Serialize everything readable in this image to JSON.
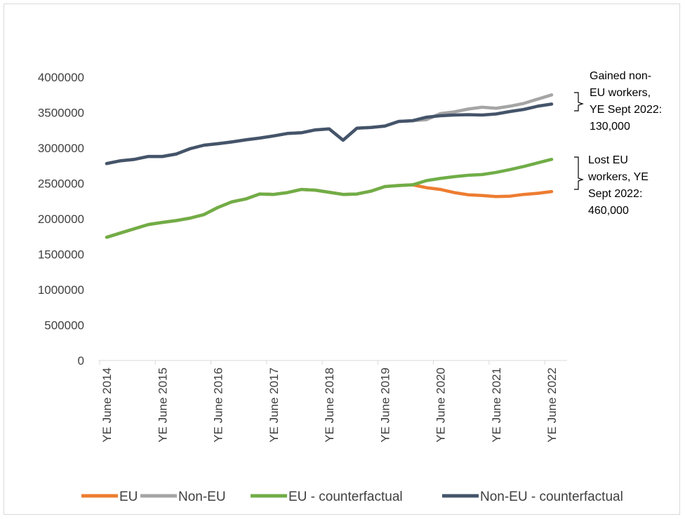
{
  "chart_data": {
    "type": "line",
    "title": "",
    "xlabel": "",
    "ylabel": "",
    "ylim": [
      0,
      4000000
    ],
    "yticks": [
      0,
      500000,
      1000000,
      1500000,
      2000000,
      2500000,
      3000000,
      3500000,
      4000000
    ],
    "ytick_labels": [
      "0",
      "500000",
      "1000000",
      "1500000",
      "2000000",
      "2500000",
      "3000000",
      "3500000",
      "4000000"
    ],
    "x_tick_labels": [
      "YE June 2014",
      "YE June 2015",
      "YE June 2016",
      "YE June 2017",
      "YE June 2018",
      "YE June 2019",
      "YE June 2020",
      "YE June 2021",
      "YE June 2022"
    ],
    "x_tick_positions": [
      0,
      4,
      8,
      12,
      16,
      20,
      24,
      28,
      32
    ],
    "grid": false,
    "legend_position": "bottom",
    "series": [
      {
        "name": "EU",
        "color": "#ED7D31",
        "values": [
          1740000,
          1800000,
          1860000,
          1920000,
          1950000,
          1975000,
          2010000,
          2060000,
          2160000,
          2240000,
          2280000,
          2350000,
          2345000,
          2370000,
          2415000,
          2405000,
          2375000,
          2345000,
          2350000,
          2390000,
          2455000,
          2470000,
          2480000,
          2440000,
          2415000,
          2370000,
          2340000,
          2330000,
          2315000,
          2320000,
          2345000,
          2360000,
          2385000
        ]
      },
      {
        "name": "Non-EU",
        "color": "#A5A5A5",
        "values": [
          2780000,
          2820000,
          2840000,
          2880000,
          2880000,
          2915000,
          2990000,
          3040000,
          3060000,
          3085000,
          3115000,
          3140000,
          3170000,
          3205000,
          3215000,
          3255000,
          3270000,
          3110000,
          3280000,
          3290000,
          3310000,
          3375000,
          3385000,
          3400000,
          3485000,
          3510000,
          3550000,
          3575000,
          3560000,
          3590000,
          3630000,
          3690000,
          3750000
        ]
      },
      {
        "name": "EU - counterfactual",
        "color": "#70AD47",
        "values": [
          1740000,
          1800000,
          1860000,
          1920000,
          1950000,
          1975000,
          2010000,
          2060000,
          2160000,
          2240000,
          2280000,
          2350000,
          2345000,
          2370000,
          2415000,
          2405000,
          2375000,
          2345000,
          2350000,
          2390000,
          2455000,
          2470000,
          2480000,
          2540000,
          2570000,
          2595000,
          2615000,
          2625000,
          2655000,
          2695000,
          2740000,
          2790000,
          2840000
        ]
      },
      {
        "name": "Non-EU - counterfactual",
        "color": "#44546A",
        "values": [
          2780000,
          2820000,
          2840000,
          2880000,
          2880000,
          2915000,
          2990000,
          3040000,
          3060000,
          3085000,
          3115000,
          3140000,
          3170000,
          3205000,
          3215000,
          3255000,
          3270000,
          3110000,
          3280000,
          3290000,
          3310000,
          3375000,
          3385000,
          3435000,
          3455000,
          3465000,
          3470000,
          3465000,
          3480000,
          3515000,
          3545000,
          3590000,
          3620000
        ]
      }
    ],
    "annotations": [
      {
        "id": "gained",
        "lines": [
          "Gained non-",
          "EU workers,",
          "YE Sept 2022:",
          "130,000"
        ]
      },
      {
        "id": "lost",
        "lines": [
          "Lost EU",
          "workers, YE",
          "Sept 2022:",
          "460,000"
        ]
      }
    ]
  }
}
